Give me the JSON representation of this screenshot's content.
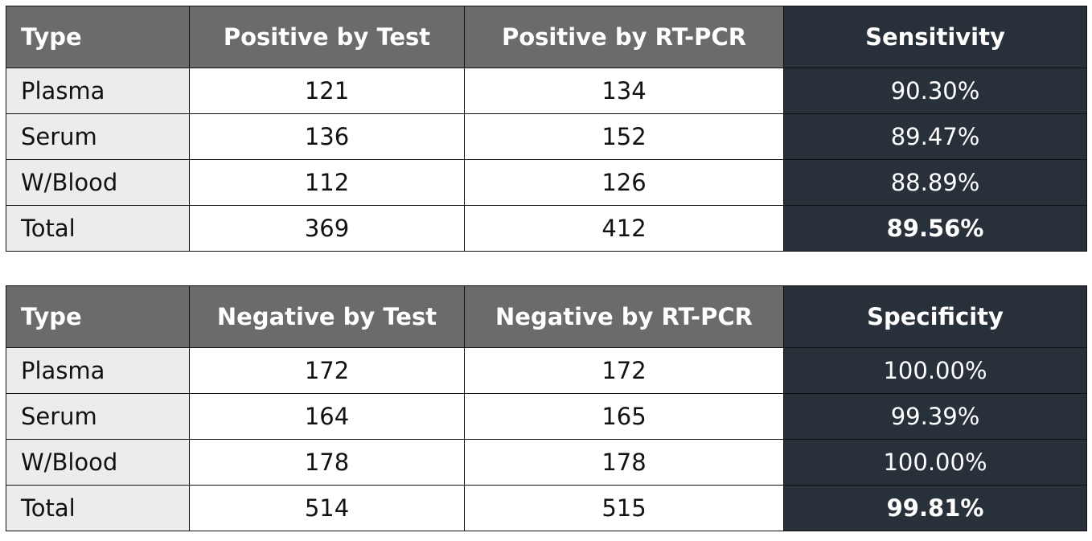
{
  "tables": [
    {
      "header": [
        "Type",
        "Positive by Test",
        "Positive by RT-PCR",
        "Sensitivity"
      ],
      "rows": [
        [
          "Plasma",
          "121",
          "134",
          "90.30%"
        ],
        [
          "Serum",
          "136",
          "152",
          "89.47%"
        ],
        [
          "W/Blood",
          "112",
          "126",
          "88.89%"
        ],
        [
          "Total",
          "369",
          "412",
          "89.56%"
        ]
      ]
    },
    {
      "header": [
        "Type",
        "Negative by Test",
        "Negative by RT-PCR",
        "Specificity"
      ],
      "rows": [
        [
          "Plasma",
          "172",
          "172",
          "100.00%"
        ],
        [
          "Serum",
          "164",
          "165",
          "99.39%"
        ],
        [
          "W/Blood",
          "178",
          "178",
          "100.00%"
        ],
        [
          "Total",
          "514",
          "515",
          "99.81%"
        ]
      ]
    }
  ]
}
